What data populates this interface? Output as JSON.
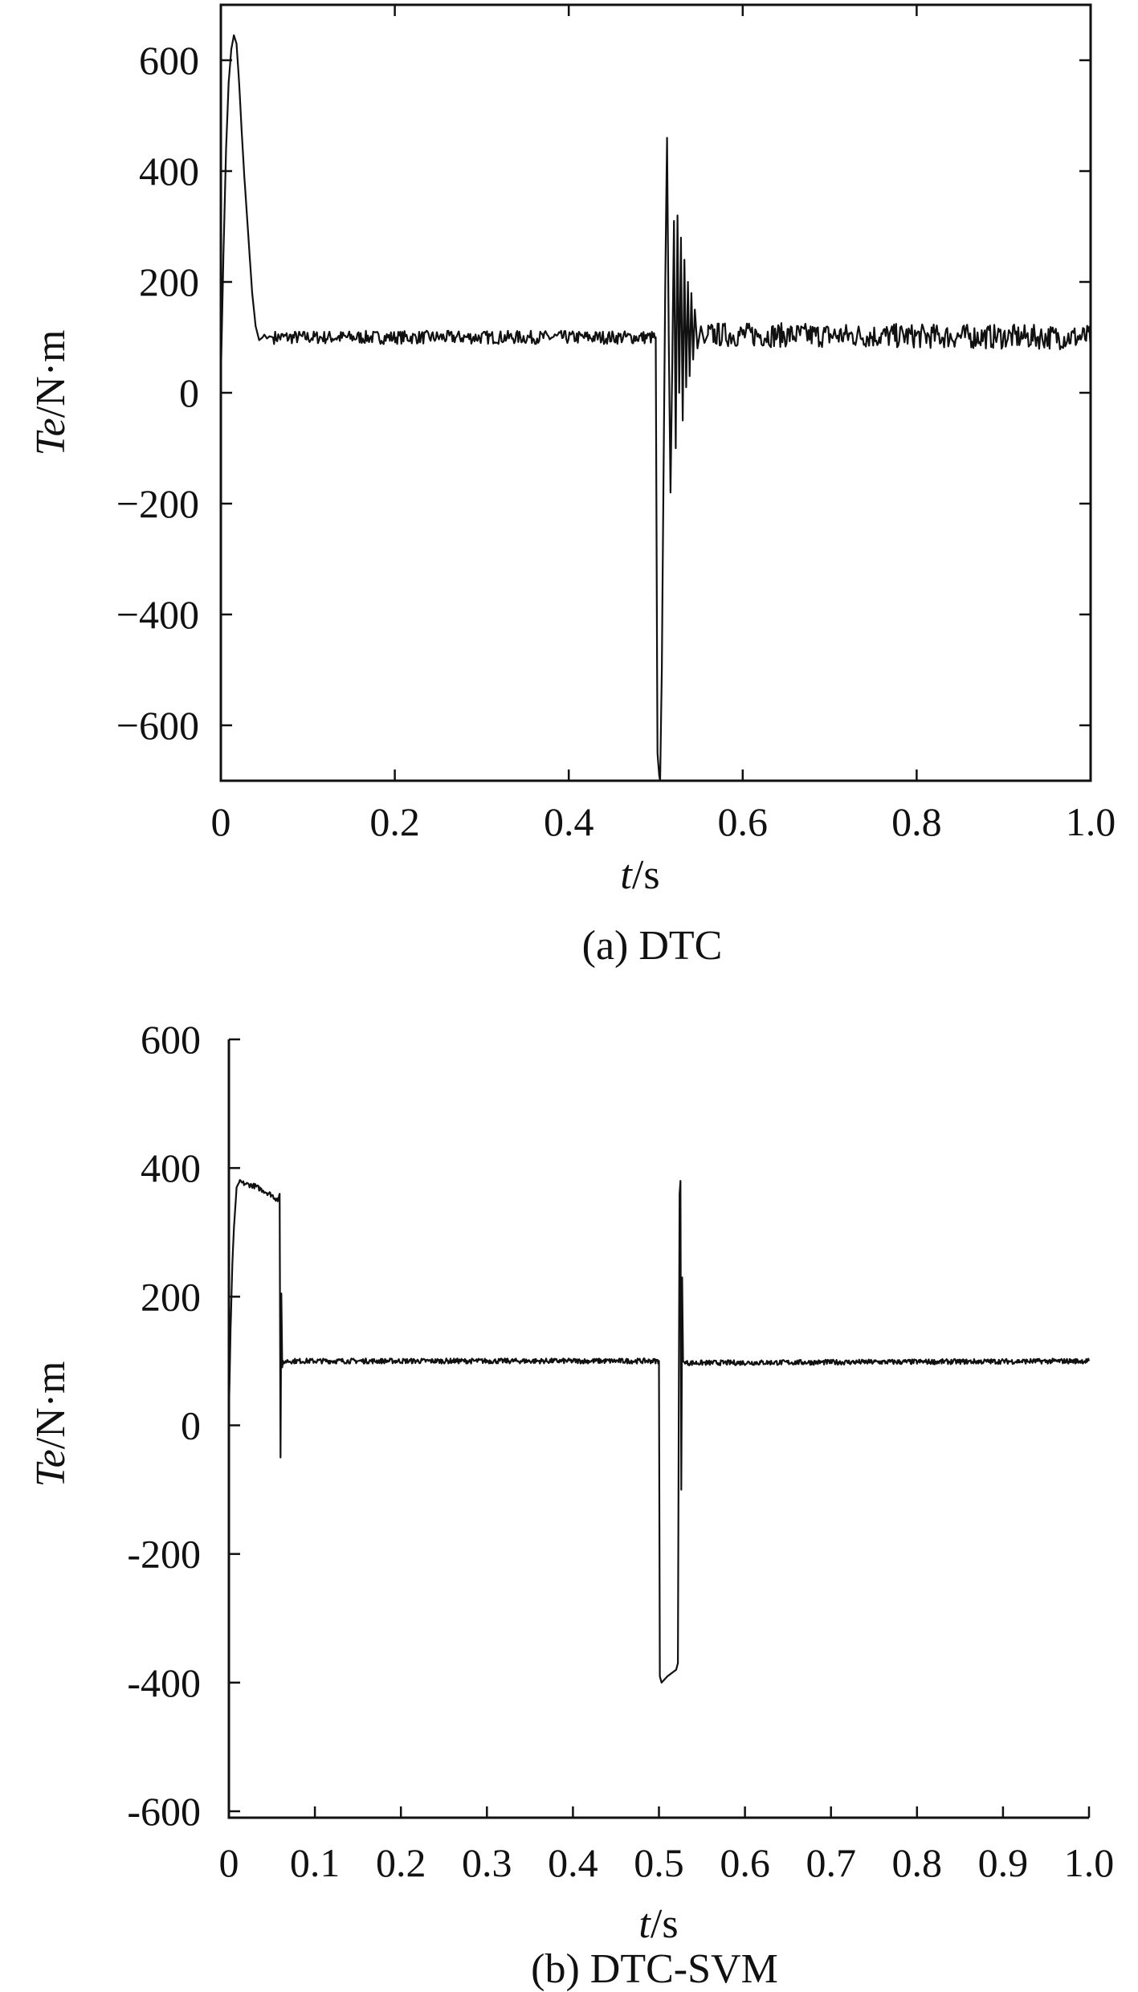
{
  "chart_data": [
    {
      "type": "line",
      "caption": "(a) DTC",
      "xlabel": {
        "var": "t",
        "unit": "/s"
      },
      "ylabel": {
        "var": "Te",
        "unit": "/N·m"
      },
      "xlim": [
        0,
        1.0
      ],
      "ylim": [
        -700,
        700
      ],
      "xticks": [
        0,
        0.2,
        0.4,
        0.6,
        0.8,
        1.0
      ],
      "xtick_labels": [
        "0",
        "0.2",
        "0.4",
        "0.6",
        "0.8",
        "1.0"
      ],
      "yticks": [
        600,
        400,
        200,
        0,
        -200,
        -400,
        -600
      ],
      "ytick_labels": [
        "600",
        "400",
        "200",
        "0",
        "−200",
        "−400",
        "−600"
      ],
      "grid": false,
      "series": [
        {
          "x": [
            0,
            0.003,
            0.006,
            0.009,
            0.012,
            0.015,
            0.018,
            0.021,
            0.024,
            0.027,
            0.03,
            0.033,
            0.036,
            0.04,
            0.044,
            0.048,
            0.05,
            0.053,
            0.056,
            0.06,
            0.5,
            0.502,
            0.505,
            0.507,
            0.509,
            0.511,
            0.513,
            0.515,
            0.517,
            0.519,
            0.521,
            0.523,
            0.525,
            0.527,
            0.529,
            0.531,
            0.533,
            0.535,
            0.537,
            0.539,
            0.541,
            0.543,
            0.545,
            0.548,
            0.552,
            0.556,
            0.56,
            1.0
          ],
          "y": [
            30,
            250,
            440,
            560,
            620,
            645,
            630,
            560,
            470,
            390,
            320,
            250,
            180,
            120,
            95,
            100,
            105,
            98,
            102,
            100,
            100,
            -650,
            -710,
            -500,
            -150,
            200,
            460,
            100,
            -180,
            50,
            310,
            -100,
            320,
            0,
            280,
            -50,
            240,
            10,
            200,
            30,
            180,
            60,
            150,
            80,
            120,
            90,
            105,
            100
          ]
        }
      ]
    },
    {
      "type": "line",
      "caption": "(b) DTC-SVM",
      "xlabel": {
        "var": "t",
        "unit": "/s"
      },
      "ylabel": {
        "var": "Te",
        "unit": "/N·m"
      },
      "xlim": [
        0,
        1.0
      ],
      "ylim": [
        -610,
        600
      ],
      "xticks": [
        0,
        0.1,
        0.2,
        0.3,
        0.4,
        0.5,
        0.6,
        0.7,
        0.8,
        0.9,
        1.0
      ],
      "xtick_labels": [
        "0",
        "0.1",
        "0.2",
        "0.3",
        "0.4",
        "0.5",
        "0.6",
        "0.7",
        "0.8",
        "0.9",
        "1.0"
      ],
      "yticks": [
        600,
        400,
        200,
        0,
        -200,
        -400,
        -600
      ],
      "ytick_labels": [
        "600",
        "400",
        "200",
        "0",
        "-200",
        "-400",
        "-600"
      ],
      "grid": false,
      "series": [
        {
          "x": [
            0,
            0.002,
            0.004,
            0.006,
            0.009,
            0.012,
            0.02,
            0.03,
            0.04,
            0.05,
            0.055,
            0.058,
            0.059,
            0.06,
            0.061,
            0.062,
            0.063,
            0.064,
            0.066,
            0.5,
            0.501,
            0.503,
            0.51,
            0.52,
            0.522,
            0.524,
            0.525,
            0.526,
            0.527,
            0.528,
            0.53,
            1.0
          ],
          "y": [
            20,
            150,
            250,
            310,
            370,
            378,
            375,
            372,
            365,
            358,
            352,
            350,
            360,
            -50,
            205,
            90,
            100,
            96,
            100,
            100,
            -390,
            -400,
            -390,
            -380,
            -370,
            360,
            380,
            -100,
            230,
            100,
            97,
            100
          ]
        }
      ]
    }
  ]
}
